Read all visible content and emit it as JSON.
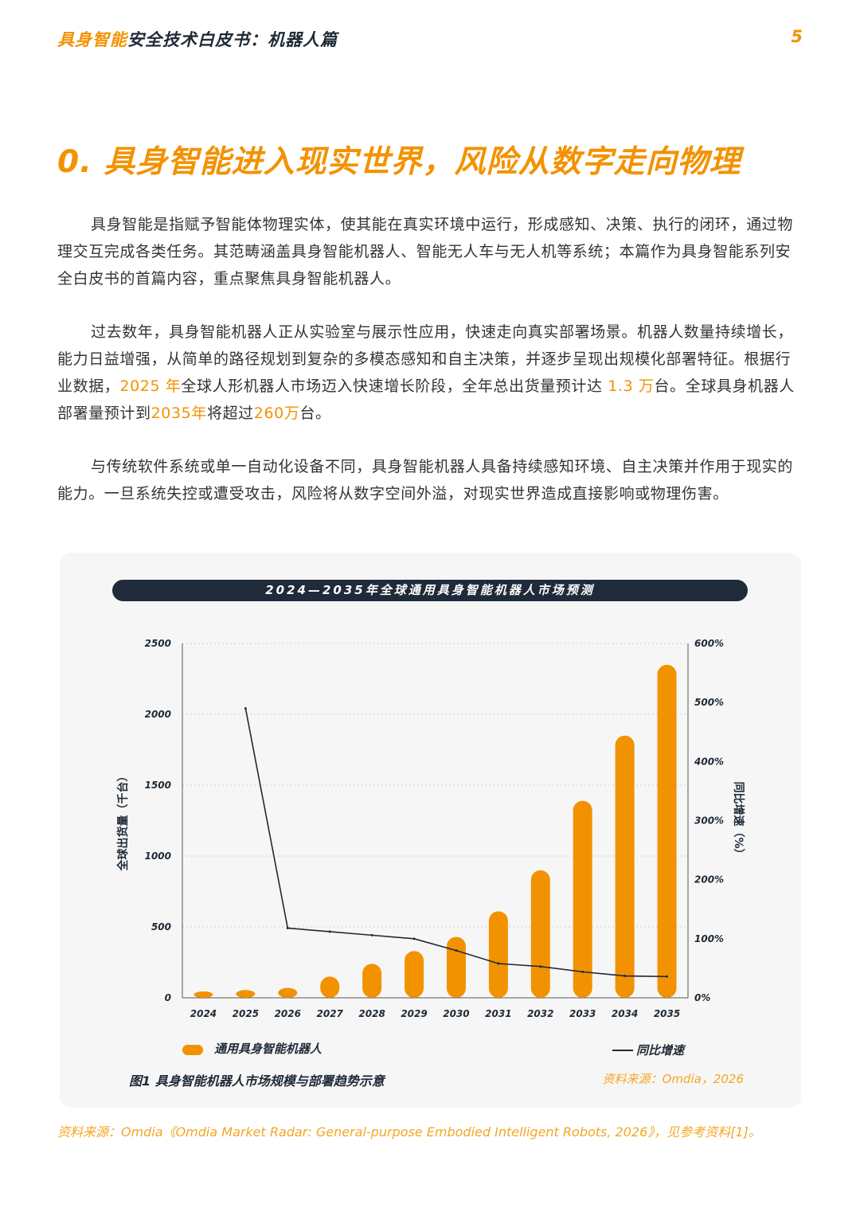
{
  "header": {
    "title_part1": "具身智能",
    "title_part2": "安全技术白皮书：机器人篇",
    "page_number": "5"
  },
  "section": {
    "title": "0. 具身智能进入现实世界，风险从数字走向物理"
  },
  "paragraphs": {
    "p1": "具身智能是指赋予智能体物理实体，使其能在真实环境中运行，形成感知、决策、执行的闭环，通过物理交互完成各类任务。其范畴涵盖具身智能机器人、智能无人车与无人机等系统；本篇作为具身智能系列安全白皮书的首篇内容，重点聚焦具身智能机器人。",
    "p2": {
      "s1": "过去数年，具身智能机器人正从实验室与展示性应用，快速走向真实部署场景。机器人数量持续增长，能力日益增强，从简单的路径规划到复杂的多模态感知和自主决策，并逐步呈现出规模化部署特征。根据行业数据，",
      "h1": "2025 年",
      "s2": "全球人形机器人市场迈入快速增长阶段，全年总出货量预计达 ",
      "h2": "1.3 万",
      "s3": "台。全球具身机器人部署量预计到",
      "h3": "2035年",
      "s4": "将超过",
      "h4": "260万",
      "s5": "台。"
    },
    "p3": "与传统软件系统或单一自动化设备不同，具身智能机器人具备持续感知环境、自主决策并作用于现实的能力。一旦系统失控或遭受攻击，风险将从数字空间外溢，对现实世界造成直接影响或物理伤害。"
  },
  "chart_data": {
    "type": "bar",
    "title": "2024—2035年全球通用具身智能机器人市场预测",
    "categories": [
      "2024",
      "2025",
      "2026",
      "2027",
      "2028",
      "2029",
      "2030",
      "2031",
      "2032",
      "2033",
      "2034",
      "2035"
    ],
    "series": [
      {
        "name": "通用具身智能机器人",
        "type": "bar",
        "axis": "left",
        "values": [
          30,
          55,
          70,
          150,
          240,
          330,
          430,
          610,
          900,
          1390,
          1850,
          2350
        ]
      },
      {
        "name": "同比增速",
        "type": "line",
        "axis": "right",
        "values": [
          null,
          490,
          118,
          112,
          106,
          100,
          80,
          58,
          53,
          44,
          37,
          36
        ]
      }
    ],
    "ylabel": "全球出货量（千台）",
    "ylabel_right": "同比增速（%）",
    "ylim": [
      0,
      2500
    ],
    "ylim_right": [
      0,
      600
    ],
    "y_ticks": [
      "0",
      "500",
      "1000",
      "1500",
      "2000",
      "2500"
    ],
    "y_ticks_right": [
      "0%",
      "100%",
      "200%",
      "300%",
      "400%",
      "500%",
      "600%"
    ],
    "grid": true,
    "bar_color": "#f39200",
    "line_color": "#1e2a36"
  },
  "figure": {
    "caption": "图1 具身智能机器人市场规模与部署趋势示意",
    "source": "资料来源：Omdia，2026"
  },
  "footer": {
    "source": "资料来源：Omdia《Omdia Market Radar: General-purpose Embodied Intelligent Robots, 2026》，见参考资料[1]。"
  }
}
